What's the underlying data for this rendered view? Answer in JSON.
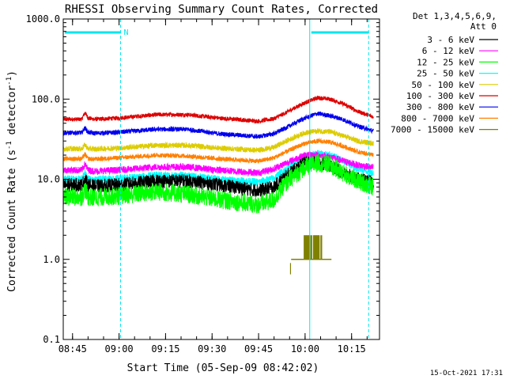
{
  "chart_data": {
    "type": "line",
    "title": "RHESSI Observing Summary Count Rates, Corrected",
    "xlabel": "Start Time (05-Sep-09 08:42:02)",
    "ylabel": "Corrected Count Rate (s⁻¹ detector⁻¹)",
    "ylabel_parts": {
      "a": "Corrected Count Rate (s",
      "b": "-1",
      "c": " detector",
      "d": "-1",
      "e": ")"
    },
    "x_unit": "minutes since 08:42:02",
    "xlim": [
      0,
      102
    ],
    "ylim": [
      0.1,
      1000
    ],
    "yscale": "log",
    "grid": false,
    "xticks": [
      {
        "v": 3,
        "label": "08:45"
      },
      {
        "v": 18,
        "label": "09:00"
      },
      {
        "v": 33,
        "label": "09:15"
      },
      {
        "v": 48,
        "label": "09:30"
      },
      {
        "v": 63,
        "label": "09:45"
      },
      {
        "v": 78,
        "label": "10:00"
      },
      {
        "v": 93,
        "label": "10:15"
      }
    ],
    "yticks": [
      {
        "v": 0.1,
        "label": "0.1"
      },
      {
        "v": 1,
        "label": "1.0"
      },
      {
        "v": 10,
        "label": "10.0"
      },
      {
        "v": 100,
        "label": "100.0"
      },
      {
        "v": 1000,
        "label": "1000.0"
      }
    ],
    "legend": {
      "position": "top-right",
      "header": [
        "Det 1,3,4,5,6,9,",
        "Att 0"
      ],
      "entries": [
        {
          "name": "3 - 6 keV",
          "color": "#000000"
        },
        {
          "name": "6 - 12 keV",
          "color": "#ff00ff"
        },
        {
          "name": "12 - 25 keV",
          "color": "#00ff00"
        },
        {
          "name": "25 - 50 keV",
          "color": "#00ffff"
        },
        {
          "name": "50 - 100 keV",
          "color": "#ddcc00"
        },
        {
          "name": "100 - 300 keV",
          "color": "#dd0000"
        },
        {
          "name": "300 - 800 keV",
          "color": "#0000ee"
        },
        {
          "name": "800 - 7000 keV",
          "color": "#ff8000"
        },
        {
          "name": "7000 - 15000 keV",
          "color": "#808000"
        }
      ]
    },
    "series": [
      {
        "name": "3 - 6 keV",
        "color": "#000000",
        "noise": 0.09,
        "x": [
          0,
          6,
          7,
          8,
          10,
          18,
          30,
          40,
          50,
          63,
          68,
          72,
          78,
          82,
          86,
          90,
          95,
          100
        ],
        "y": [
          8.5,
          8.5,
          10,
          8.5,
          8.2,
          8.5,
          9.5,
          9.5,
          8.5,
          7.2,
          8,
          11,
          16,
          16,
          15,
          12,
          10,
          9
        ]
      },
      {
        "name": "6 - 12 keV",
        "color": "#ff00ff",
        "noise": 0.045,
        "x": [
          0,
          6,
          7,
          8,
          10,
          18,
          30,
          40,
          50,
          63,
          68,
          72,
          78,
          82,
          86,
          90,
          95,
          100
        ],
        "y": [
          13,
          13,
          15.5,
          13,
          12.6,
          13,
          14.2,
          14.2,
          13,
          12,
          13.5,
          16,
          20,
          20,
          19,
          17,
          15,
          14
        ]
      },
      {
        "name": "12 - 25 keV",
        "color": "#00ff00",
        "noise": 0.12,
        "x": [
          0,
          6,
          7,
          8,
          10,
          18,
          30,
          40,
          50,
          63,
          68,
          72,
          78,
          82,
          86,
          90,
          95,
          100
        ],
        "y": [
          6,
          6,
          7.5,
          6,
          5.9,
          6.2,
          7,
          6.5,
          5.6,
          4.8,
          5.5,
          9,
          14,
          16,
          15,
          12,
          9.5,
          8
        ]
      },
      {
        "name": "25 - 50 keV",
        "color": "#00ffff",
        "noise": 0.05,
        "x": [
          0,
          6,
          7,
          8,
          10,
          18,
          30,
          40,
          50,
          63,
          68,
          72,
          78,
          82,
          86,
          90,
          95,
          100
        ],
        "y": [
          10,
          10,
          12,
          10,
          9.8,
          10.2,
          11.2,
          11,
          10,
          9.2,
          10.3,
          13.5,
          19,
          21,
          20,
          17,
          13.5,
          12
        ]
      },
      {
        "name": "50 - 100 keV",
        "color": "#ddcc00",
        "noise": 0.035,
        "x": [
          0,
          6,
          7,
          8,
          10,
          18,
          30,
          40,
          50,
          63,
          68,
          72,
          78,
          82,
          86,
          90,
          95,
          100
        ],
        "y": [
          24,
          24,
          27,
          24,
          23.8,
          24.5,
          26.5,
          26.5,
          24.5,
          23,
          25,
          30,
          38,
          40,
          39,
          35,
          30,
          28
        ]
      },
      {
        "name": "100 - 300 keV",
        "color": "#dd0000",
        "noise": 0.028,
        "x": [
          0,
          6,
          7,
          8,
          10,
          18,
          30,
          40,
          50,
          63,
          68,
          72,
          78,
          82,
          86,
          90,
          95,
          100
        ],
        "y": [
          56,
          56,
          68,
          58,
          56,
          58,
          64,
          64,
          58,
          53,
          57,
          68,
          90,
          104,
          100,
          88,
          70,
          60
        ]
      },
      {
        "name": "300 - 800 keV",
        "color": "#0000ee",
        "noise": 0.03,
        "x": [
          0,
          6,
          7,
          8,
          10,
          18,
          30,
          40,
          50,
          63,
          68,
          72,
          78,
          82,
          86,
          90,
          95,
          100
        ],
        "y": [
          38,
          38,
          44,
          38.5,
          37.5,
          38.5,
          42,
          42,
          37,
          34,
          37,
          44,
          58,
          66,
          62,
          56,
          46,
          40
        ]
      },
      {
        "name": "800 - 7000 keV",
        "color": "#ff8000",
        "noise": 0.03,
        "x": [
          0,
          6,
          7,
          8,
          10,
          18,
          30,
          40,
          50,
          63,
          68,
          72,
          78,
          82,
          86,
          90,
          95,
          100
        ],
        "y": [
          18,
          18,
          20.5,
          18,
          17.8,
          18.5,
          20,
          19.5,
          18,
          16.8,
          18.5,
          22,
          28,
          30,
          29,
          26,
          22,
          20
        ]
      }
    ],
    "bars_7000": {
      "x": [
        77.8,
        78.2,
        78.6,
        79.0,
        79.4,
        80.0,
        80.8,
        81.2,
        81.6,
        82.0,
        82.4,
        83.2
      ],
      "y": 2.0,
      "baseline": 1.0
    },
    "baseline_7000": {
      "x0": 73.5,
      "x1": 86.5,
      "y": 1.0
    },
    "marker_7000": {
      "x": 73.3,
      "y0": 0.65,
      "y1": 0.9
    },
    "annotations": {
      "saa_bars": [
        {
          "x0": 0.5,
          "x1": 18.5
        },
        {
          "x0": 80,
          "x1": 98.5
        }
      ],
      "night_lines": [
        0,
        18.5,
        79.5,
        98.5
      ],
      "letter": {
        "x": 19.5,
        "text": "N"
      },
      "color": "#00e5ee"
    },
    "timestamp": "15-Oct-2021 17:31"
  }
}
